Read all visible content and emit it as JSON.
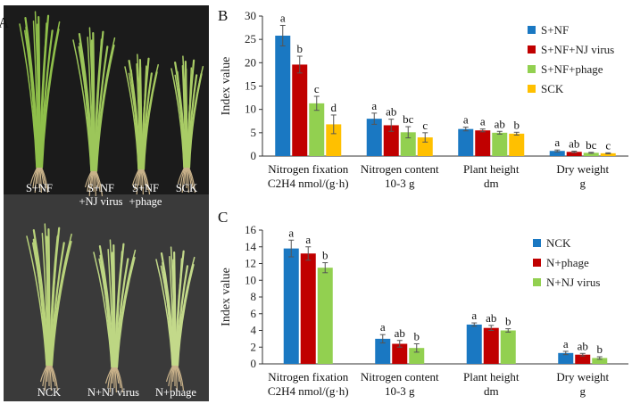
{
  "panel_labels": {
    "a": "A",
    "b": "B",
    "c": "C"
  },
  "photo": {
    "top_labels": [
      [
        "S+NF"
      ],
      [
        "S+NF",
        "+NJ virus"
      ],
      [
        "S+NF",
        "+phage"
      ],
      [
        "SCK"
      ]
    ],
    "bottom_labels": [
      [
        "NCK"
      ],
      [
        "N+NJ virus"
      ],
      [
        "N+phage"
      ]
    ]
  },
  "colors": {
    "blue": "#1a78c2",
    "red": "#c00000",
    "green": "#92d050",
    "yellow": "#ffc000",
    "axis": "#333333"
  },
  "chart_data": [
    {
      "type": "bar",
      "panel": "B",
      "ylabel": "Index value",
      "ylim": [
        0,
        30
      ],
      "yticks": [
        "0",
        "5",
        "10",
        "15",
        "20",
        "25",
        "30"
      ],
      "categories": [
        [
          "Nitrogen fixation",
          "C2H4 nmol/(g·h)"
        ],
        [
          "Nitrogen content",
          "10-3 g"
        ],
        [
          "Plant height",
          "dm"
        ],
        [
          "Dry weight",
          "g"
        ]
      ],
      "series": [
        {
          "name": "S+NF",
          "color": "#1a78c2",
          "values": [
            25.8,
            8.0,
            5.8,
            1.1
          ],
          "errors": [
            2.2,
            1.2,
            0.4,
            0.2
          ],
          "letters": [
            "a",
            "a",
            "a",
            "a"
          ]
        },
        {
          "name": "S+NF+NJ virus",
          "color": "#c00000",
          "values": [
            19.6,
            6.6,
            5.5,
            0.9
          ],
          "errors": [
            1.8,
            1.3,
            0.3,
            0.15
          ],
          "letters": [
            "b",
            "ab",
            "a",
            "ab"
          ]
        },
        {
          "name": "S+NF+phage",
          "color": "#92d050",
          "values": [
            11.3,
            5.1,
            5.0,
            0.7
          ],
          "errors": [
            1.5,
            1.2,
            0.3,
            0.1
          ],
          "letters": [
            "c",
            "bc",
            "ab",
            "bc"
          ]
        },
        {
          "name": "SCK",
          "color": "#ffc000",
          "values": [
            6.8,
            4.0,
            4.8,
            0.6
          ],
          "errors": [
            2.0,
            1.0,
            0.3,
            0.1
          ],
          "letters": [
            "d",
            "c",
            "b",
            "c"
          ]
        }
      ]
    },
    {
      "type": "bar",
      "panel": "C",
      "ylabel": "Index value",
      "ylim": [
        0,
        16
      ],
      "yticks": [
        "0",
        "2",
        "4",
        "6",
        "8",
        "10",
        "12",
        "14",
        "16"
      ],
      "categories": [
        [
          "Nitrogen fixation",
          "C2H4 nmol/(g·h)"
        ],
        [
          "Nitrogen content",
          "10-3 g"
        ],
        [
          "Plant height",
          "dm"
        ],
        [
          "Dry weight",
          "g"
        ]
      ],
      "series": [
        {
          "name": "NCK",
          "color": "#1a78c2",
          "values": [
            13.8,
            3.0,
            4.7,
            1.3
          ],
          "errors": [
            1.0,
            0.5,
            0.2,
            0.2
          ],
          "letters": [
            "a",
            "a",
            "a",
            "a"
          ]
        },
        {
          "name": "N+phage",
          "color": "#c00000",
          "values": [
            13.2,
            2.4,
            4.3,
            1.1
          ],
          "errors": [
            0.8,
            0.4,
            0.3,
            0.15
          ],
          "letters": [
            "a",
            "ab",
            "ab",
            "ab"
          ]
        },
        {
          "name": "N+NJ virus",
          "color": "#92d050",
          "values": [
            11.5,
            1.9,
            4.0,
            0.7
          ],
          "errors": [
            0.6,
            0.5,
            0.2,
            0.15
          ],
          "letters": [
            "b",
            "b",
            "b",
            "b"
          ]
        }
      ]
    }
  ]
}
